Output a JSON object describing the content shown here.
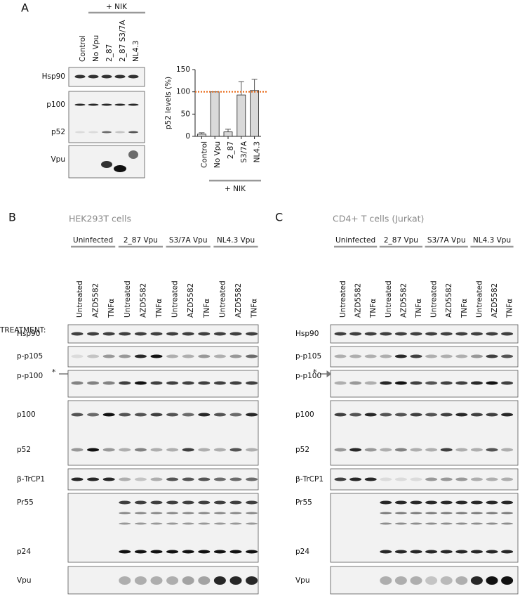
{
  "panel_a": {
    "letter": "A",
    "treatment_label": "+ NIK",
    "lanes": [
      "Control",
      "No Vpu",
      "2_87",
      "2_87 S3/7A",
      "NL4.3"
    ],
    "rows": [
      "Hsp90",
      "p100",
      "p52",
      "Vpu"
    ]
  },
  "chart_data": {
    "type": "bar",
    "y_label": "p52 levels (%)",
    "categories": [
      "Control",
      "No Vpu",
      "2_87",
      "S3/7A",
      "NL4.3"
    ],
    "values": [
      5,
      100,
      10,
      93,
      103
    ],
    "errors": [
      3,
      0,
      6,
      30,
      25
    ],
    "color": "#d9d9d9",
    "ylim": [
      0,
      150
    ],
    "yticks": [
      0,
      50,
      100,
      150
    ],
    "reference_line": 100,
    "reference_color": "#e8620c",
    "group_label": "+ NIK"
  },
  "panel_b": {
    "letter": "B",
    "title": "HEK293T cells",
    "treatment_heading": "TREATMENT:",
    "groups": [
      "Uninfected",
      "2_87 Vpu",
      "S3/7A Vpu",
      "NL4.3 Vpu"
    ],
    "treatments": [
      "Untreated",
      "AZD5582",
      "TNFα"
    ],
    "rows": [
      "Hsp90",
      "p-p105",
      "p-p100",
      "p100",
      "p52",
      "β-TrCP1",
      "Pr55",
      "p24",
      "Vpu"
    ],
    "marker": "*"
  },
  "panel_c": {
    "letter": "C",
    "title": "CD4+ T cells (Jurkat)",
    "groups": [
      "Uninfected",
      "2_87 Vpu",
      "S3/7A Vpu",
      "NL4.3 Vpu"
    ],
    "treatments": [
      "Untreated",
      "AZD5582",
      "TNFα"
    ],
    "rows": [
      "Hsp90",
      "p-p105",
      "p-p100",
      "p100",
      "p52",
      "β-TrCP1",
      "Pr55",
      "p24",
      "Vpu"
    ],
    "marker": "*"
  }
}
